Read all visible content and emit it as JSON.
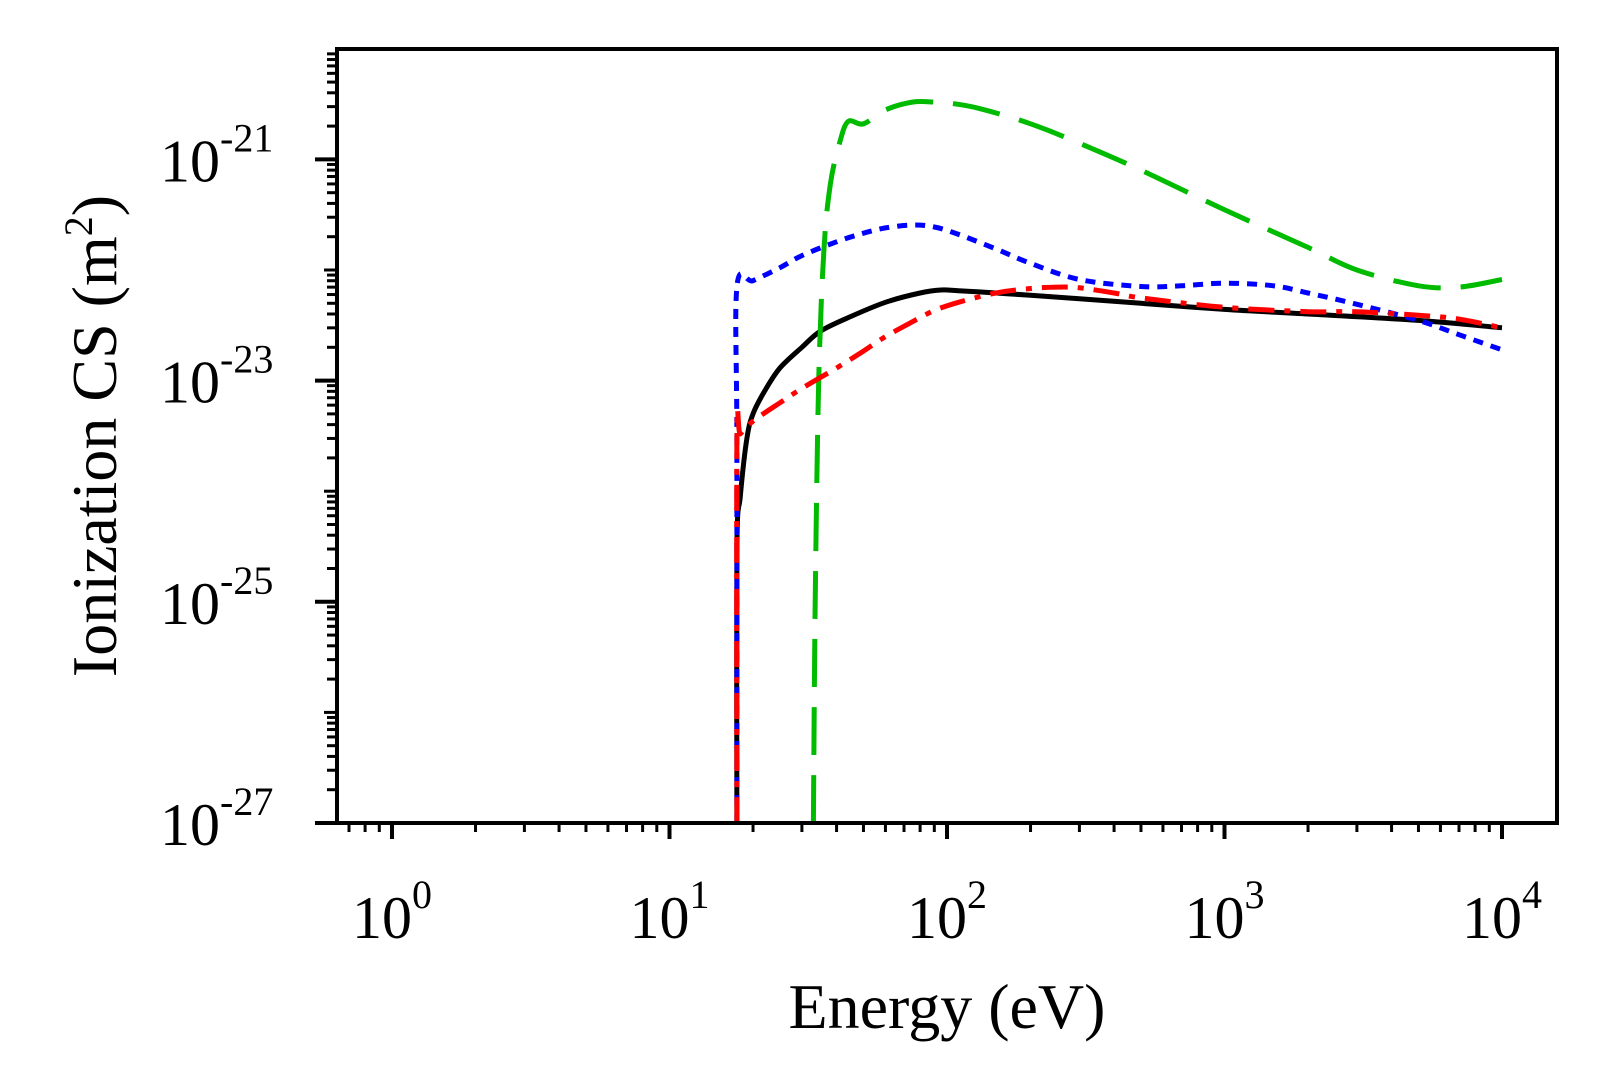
{
  "chart_data": {
    "type": "line",
    "title": "",
    "xlabel": "Energy (eV)",
    "ylabel_base": "Ionization CS (m",
    "ylabel_sup": "2",
    "ylabel_close": ")",
    "x_scale": "log",
    "y_scale": "log",
    "xlim": [
      0.63,
      15000
    ],
    "ylim": [
      1e-27,
      1e-20
    ],
    "grid": false,
    "legend": "none",
    "x_ticks": [
      {
        "value": 1,
        "base": "10",
        "exp": "0"
      },
      {
        "value": 10,
        "base": "10",
        "exp": "1"
      },
      {
        "value": 100,
        "base": "10",
        "exp": "2"
      },
      {
        "value": 1000,
        "base": "10",
        "exp": "3"
      },
      {
        "value": 10000,
        "base": "10",
        "exp": "4"
      }
    ],
    "y_ticks": [
      {
        "value": 1e-27,
        "base": "10",
        "exp": "-27"
      },
      {
        "value": 1e-25,
        "base": "10",
        "exp": "-25"
      },
      {
        "value": 1e-23,
        "base": "10",
        "exp": "-23"
      },
      {
        "value": 1e-21,
        "base": "10",
        "exp": "-21"
      }
    ],
    "series": [
      {
        "name": "black-solid",
        "color": "#000000",
        "dash": "solid",
        "x": [
          17.5,
          17.5,
          18,
          19,
          20,
          22,
          25,
          30,
          35,
          45,
          60,
          80,
          95,
          110,
          150,
          200,
          300,
          500,
          1000,
          2000,
          5000,
          10000
        ],
        "y": [
          1e-27,
          3e-25,
          9e-25,
          3e-24,
          5e-24,
          8e-24,
          1.3e-23,
          2e-23,
          2.8e-23,
          3.8e-23,
          5.1e-23,
          6.2e-23,
          6.6e-23,
          6.5e-23,
          6.2e-23,
          5.9e-23,
          5.5e-23,
          5e-23,
          4.4e-23,
          4e-23,
          3.5e-23,
          3e-23
        ]
      },
      {
        "name": "blue-dotted",
        "color": "#0000ff",
        "dash": "dotted",
        "x": [
          17.5,
          17.5,
          17.5,
          20,
          25,
          30,
          40,
          50,
          60,
          75,
          90,
          110,
          150,
          200,
          300,
          500,
          700,
          1000,
          1500,
          2000,
          3000,
          5000,
          7000,
          10000
        ],
        "y": [
          1e-27,
          2.5e-24,
          7e-23,
          8e-23,
          1.05e-22,
          1.35e-22,
          1.8e-22,
          2.15e-22,
          2.4e-22,
          2.55e-22,
          2.45e-22,
          2.1e-22,
          1.55e-22,
          1.15e-22,
          8.2e-23,
          7.1e-23,
          7.2e-23,
          7.6e-23,
          7.2e-23,
          6.2e-23,
          4.9e-23,
          3.5e-23,
          2.6e-23,
          1.9e-23
        ]
      },
      {
        "name": "green-dashed",
        "color": "#00bb00",
        "dash": "dashed",
        "x": [
          33,
          33.5,
          34.5,
          36,
          38,
          41,
          44,
          50,
          60,
          75,
          90,
          100,
          130,
          200,
          300,
          500,
          1000,
          2000,
          3000,
          5000,
          7000,
          10000
        ],
        "y": [
          1e-27,
          1e-25,
          1e-23,
          1.5e-22,
          6e-22,
          1.4e-21,
          2.2e-21,
          2.1e-21,
          2.8e-21,
          3.3e-21,
          3.3e-21,
          3.25e-21,
          2.9e-21,
          2.1e-21,
          1.4e-21,
          8e-22,
          3.5e-22,
          1.6e-22,
          1e-22,
          7.2e-23,
          7e-23,
          8.2e-23
        ]
      },
      {
        "name": "red-dashdot",
        "color": "#ff0000",
        "dash": "dashdot",
        "x": [
          17.5,
          17.5,
          18,
          20,
          25,
          30,
          40,
          50,
          60,
          75,
          90,
          110,
          150,
          200,
          250,
          300,
          400,
          500,
          1000,
          2000,
          3000,
          5000,
          7000,
          10000
        ],
        "y": [
          1e-27,
          3e-24,
          3.3e-24,
          4.3e-24,
          6.3e-24,
          8.5e-24,
          1.3e-23,
          1.85e-23,
          2.5e-23,
          3.4e-23,
          4.3e-23,
          5.1e-23,
          6.2e-23,
          6.8e-23,
          7e-23,
          6.9e-23,
          6.2e-23,
          5.6e-23,
          4.6e-23,
          4.2e-23,
          4.2e-23,
          3.9e-23,
          3.6e-23,
          3e-23
        ]
      }
    ]
  }
}
